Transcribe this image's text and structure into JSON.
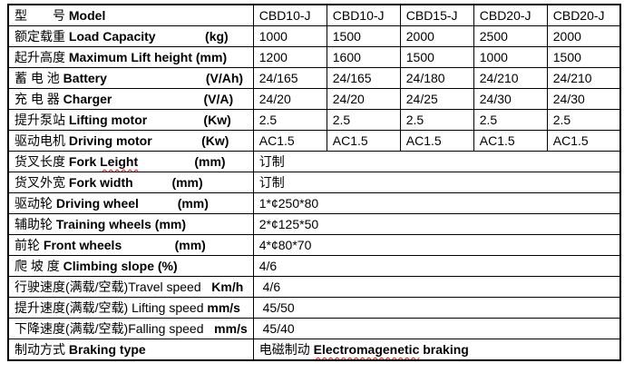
{
  "colors": {
    "text": "#000000",
    "highlight_red": "#ff0000",
    "border": "#000000",
    "background": "#ffffff"
  },
  "table": {
    "column_count": 6,
    "rows": [
      {
        "label": [
          {
            "t": "型　　号 ",
            "b": false
          },
          {
            "t": "Model",
            "b": true
          }
        ],
        "cells": [
          {
            "t": "CBD10-J"
          },
          {
            "t": "CBD10-J"
          },
          {
            "t": "CBD15-J"
          },
          {
            "t": "CBD20-J"
          },
          {
            "t": "CBD20-J"
          }
        ]
      },
      {
        "label": [
          {
            "t": "额定载重 ",
            "b": false
          },
          {
            "t": "Load Capacity              (kg)",
            "b": true
          }
        ],
        "cells": [
          {
            "t": "1000"
          },
          {
            "t": "1500"
          },
          {
            "t": "2000"
          },
          {
            "t": "2500"
          },
          {
            "t": "2000"
          }
        ]
      },
      {
        "label": [
          {
            "t": "起升高度 ",
            "b": false
          },
          {
            "t": "Maximum Lift height (mm)",
            "b": true
          }
        ],
        "cells": [
          {
            "t": "1200"
          },
          {
            "t": "1600"
          },
          {
            "t": "1500"
          },
          {
            "t": "1000"
          },
          {
            "t": "1500"
          }
        ]
      },
      {
        "label": [
          {
            "t": "蓄 电 池 ",
            "b": false
          },
          {
            "t": "Battery                            (V/Ah)",
            "b": true
          }
        ],
        "cells": [
          {
            "t": "24/165"
          },
          {
            "t": "24/165"
          },
          {
            "t": "24/180"
          },
          {
            "t": "24/210"
          },
          {
            "t": "24/210"
          }
        ]
      },
      {
        "label": [
          {
            "t": "充 电 器 ",
            "b": false
          },
          {
            "t": "Charger                          (V/A)",
            "b": true
          }
        ],
        "cells": [
          {
            "t": "24/20"
          },
          {
            "t": "24/20"
          },
          {
            "t": "24/25"
          },
          {
            "t": "24/30"
          },
          {
            "t": "24/30"
          }
        ]
      },
      {
        "label": [
          {
            "t": "提升泵站 ",
            "b": false
          },
          {
            "t": "Lifting motor                (Kw)",
            "b": true
          }
        ],
        "cells": [
          {
            "t": "2.5",
            "red": true
          },
          {
            "t": "2.5",
            "red": true
          },
          {
            "t": "2.5",
            "red": true
          },
          {
            "t": "2.5",
            "red": true
          },
          {
            "t": "2.5",
            "red": true
          }
        ]
      },
      {
        "label": [
          {
            "t": "驱动电机 ",
            "b": false
          },
          {
            "t": "Driving motor              (Kw)",
            "b": true
          }
        ],
        "cells": [
          {
            "t": "AC1.5"
          },
          {
            "t": "AC1.5"
          },
          {
            "t": "AC1.5"
          },
          {
            "t": "AC1.5"
          },
          {
            "t": "AC1.5"
          }
        ]
      },
      {
        "label": [
          {
            "t": "货叉长度 ",
            "b": false
          },
          {
            "t": "Fork ",
            "b": true
          },
          {
            "t": "Leight",
            "b": true,
            "wavy": true
          },
          {
            "t": "                (mm)",
            "b": true
          }
        ],
        "cells": [
          {
            "t": "订制",
            "colspan": 5
          }
        ]
      },
      {
        "label": [
          {
            "t": "货叉外宽 ",
            "b": false
          },
          {
            "t": "Fork width           (mm)",
            "b": true
          }
        ],
        "cells": [
          {
            "t": "订制",
            "colspan": 5
          }
        ]
      },
      {
        "label": [
          {
            "t": "驱动轮 ",
            "b": false
          },
          {
            "t": "Driving wheel           (mm)",
            "b": true
          }
        ],
        "cells": [
          {
            "t": "1*¢250*80",
            "colspan": 5
          }
        ]
      },
      {
        "label": [
          {
            "t": "辅助轮 ",
            "b": false
          },
          {
            "t": "Training wheels (mm)",
            "b": true
          }
        ],
        "cells": [
          {
            "t": "2*¢125*50",
            "colspan": 5
          }
        ]
      },
      {
        "label": [
          {
            "t": "前轮 ",
            "b": false
          },
          {
            "t": "Front wheels               (mm)",
            "b": true
          }
        ],
        "cells": [
          {
            "t": "4*¢80*70",
            "colspan": 5
          }
        ]
      },
      {
        "label": [
          {
            "t": "爬 坡 度 ",
            "b": false
          },
          {
            "t": "Climbing slope (%)",
            "b": true
          }
        ],
        "cells": [
          {
            "t": "4/6",
            "colspan": 5
          }
        ]
      },
      {
        "label": [
          {
            "t": "行驶速度(满载/空载)Travel speed   ",
            "b": false
          },
          {
            "t": "Km/h",
            "b": true
          }
        ],
        "cells": [
          {
            "t": " 4/6",
            "colspan": 5
          }
        ]
      },
      {
        "label": [
          {
            "t": "提升速度(满载/空载) Lifting speed ",
            "b": false
          },
          {
            "t": "mm/s",
            "b": true
          }
        ],
        "cells": [
          {
            "t": " 45/50",
            "colspan": 5
          }
        ]
      },
      {
        "label": [
          {
            "t": "下降速度(满载/空载)Falling speed   ",
            "b": false
          },
          {
            "t": "mm/s",
            "b": true
          }
        ],
        "cells": [
          {
            "t": " 45/40",
            "colspan": 5
          }
        ]
      },
      {
        "label": [
          {
            "t": "制动方式 ",
            "b": false
          },
          {
            "t": "Braking type",
            "b": true
          }
        ],
        "cells": [
          {
            "colspan": 5,
            "segs": [
              {
                "t": "电磁制动 ",
                "b": false
              },
              {
                "t": "Electromagenetic",
                "b": true,
                "wavy": true
              },
              {
                "t": " braking",
                "b": true
              }
            ]
          }
        ]
      }
    ]
  }
}
